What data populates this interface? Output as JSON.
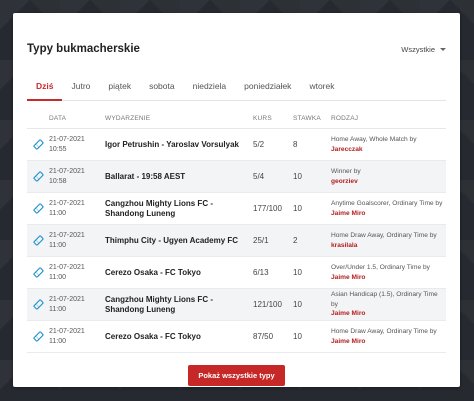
{
  "card": {
    "title": "Typy bukmacherskie",
    "filter_label": "Wszystkie"
  },
  "tabs": [
    "Dziś",
    "Jutro",
    "piątek",
    "sobota",
    "niedziela",
    "poniedziałek",
    "wtorek"
  ],
  "columns": {
    "date": "DATA",
    "event": "WYDARZENIE",
    "odds": "KURS",
    "stake": "STAWKA",
    "type": "RODZAJ"
  },
  "rows": [
    {
      "date": "21-07-2021",
      "time": "10:55",
      "event": "Igor Petrushin - Yaroslav Vorsulyak",
      "odds": "5/2",
      "stake": "8",
      "type": "Home Away, Whole Match by",
      "tipster": "Jarecczak"
    },
    {
      "date": "21-07-2021",
      "time": "10:58",
      "event": "Ballarat - 19:58 AEST",
      "odds": "5/4",
      "stake": "10",
      "type": "Winner by",
      "tipster": "georziev"
    },
    {
      "date": "21-07-2021",
      "time": "11:00",
      "event": "Cangzhou Mighty Lions FC - Shandong Luneng",
      "odds": "177/100",
      "stake": "10",
      "type": "Anytime Goalscorer, Ordinary Time by",
      "tipster": "Jaime Miro"
    },
    {
      "date": "21-07-2021",
      "time": "11:00",
      "event": "Thimphu City - Ugyen Academy FC",
      "odds": "25/1",
      "stake": "2",
      "type": "Home Draw Away, Ordinary Time by",
      "tipster": "krasilala"
    },
    {
      "date": "21-07-2021",
      "time": "11:00",
      "event": "Cerezo Osaka - FC Tokyo",
      "odds": "6/13",
      "stake": "10",
      "type": "Over/Under 1.5, Ordinary Time by",
      "tipster": "Jaime Miro"
    },
    {
      "date": "21-07-2021",
      "time": "11:00",
      "event": "Cangzhou Mighty Lions FC - Shandong Luneng",
      "odds": "121/100",
      "stake": "10",
      "type": "Asian Handicap (1.5), Ordinary Time by",
      "tipster": "Jaime Miro"
    },
    {
      "date": "21-07-2021",
      "time": "11:00",
      "event": "Cerezo Osaka - FC Tokyo",
      "odds": "87/50",
      "stake": "10",
      "type": "Home Draw Away, Ordinary Time by",
      "tipster": "Jaime Miro"
    }
  ],
  "show_all_button": "Pokaż wszystkie typy",
  "colors": {
    "accent": "#c62828",
    "ticket_icon": "#1a8fd0"
  }
}
